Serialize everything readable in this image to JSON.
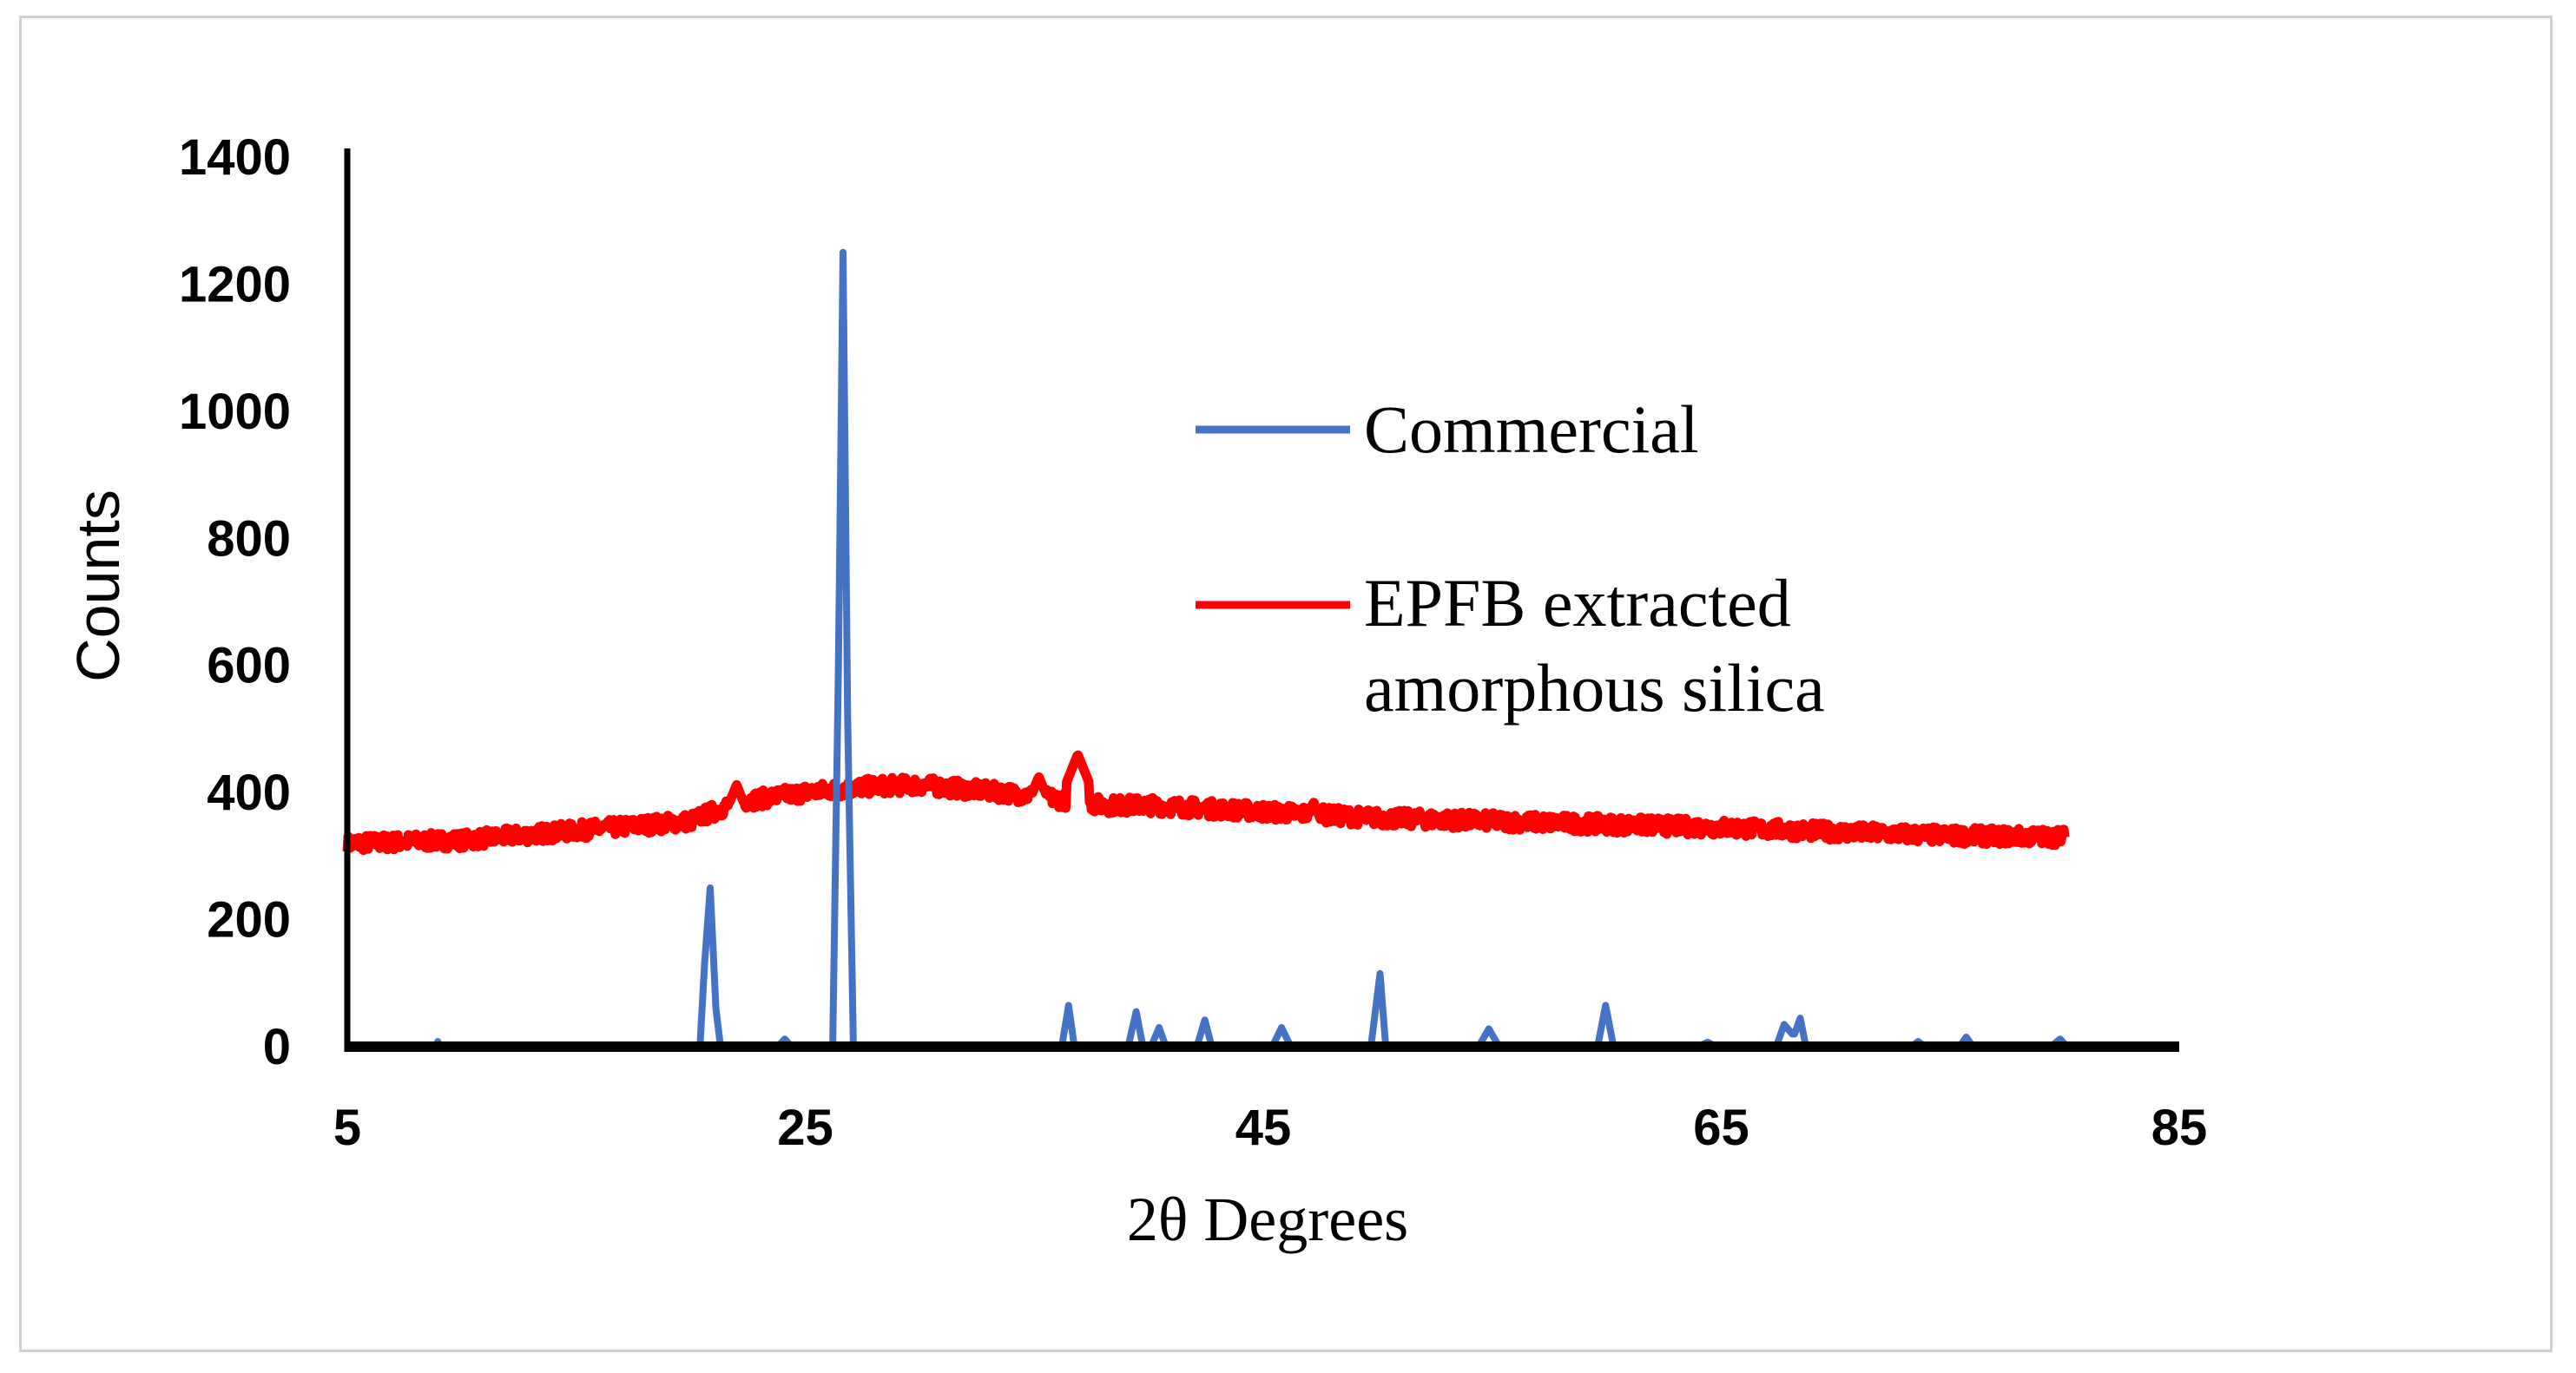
{
  "chart_data": {
    "type": "line",
    "title": "",
    "xlabel": "2θ Degrees",
    "ylabel": "Counts",
    "xlim": [
      5,
      85
    ],
    "ylim": [
      0,
      1400
    ],
    "xticks": [
      5,
      25,
      45,
      65,
      85
    ],
    "yticks": [
      0,
      200,
      400,
      600,
      800,
      1000,
      1200,
      1400
    ],
    "legend_position": "right-center",
    "series": [
      {
        "name": "Commercial",
        "color": "#4472C4",
        "x": [
          5,
          8.9,
          8.95,
          9,
          20.4,
          20.6,
          20.85,
          21.1,
          21.3,
          23.8,
          24.1,
          24.4,
          26.2,
          26.45,
          26.65,
          26.85,
          27.1,
          36.2,
          36.5,
          36.75,
          39.1,
          39.45,
          39.75,
          40.1,
          40.45,
          40.75,
          42.1,
          42.45,
          42.75,
          45.4,
          45.8,
          46.2,
          49.7,
          50.1,
          50.35,
          54.4,
          54.85,
          55.3,
          59.6,
          59.95,
          60.3,
          64.0,
          64.4,
          64.8,
          67.4,
          67.75,
          68.1,
          68.2,
          68.45,
          68.7,
          73.3,
          73.6,
          73.9,
          75.4,
          75.7,
          76.0,
          79.4,
          79.8,
          80.1,
          80
        ],
        "y": [
          0,
          0,
          8,
          0,
          0,
          130,
          250,
          60,
          0,
          0,
          12,
          0,
          0,
          600,
          1250,
          520,
          0,
          0,
          65,
          0,
          0,
          55,
          0,
          0,
          30,
          0,
          0,
          42,
          0,
          0,
          30,
          0,
          0,
          115,
          0,
          0,
          28,
          0,
          0,
          65,
          0,
          0,
          7,
          0,
          0,
          35,
          20,
          20,
          45,
          0,
          0,
          8,
          0,
          0,
          15,
          0,
          0,
          12,
          0,
          0
        ]
      },
      {
        "name": "EPFB extracted amorphous silica",
        "color": "#FF0000",
        "x": [
          5,
          10,
          15,
          20,
          22,
          25,
          28,
          30,
          33,
          35,
          37,
          38,
          40,
          45,
          50,
          55,
          60,
          65,
          70,
          75,
          80
        ],
        "y": [
          320,
          325,
          340,
          355,
          385,
          400,
          410,
          412,
          402,
          395,
          385,
          380,
          380,
          370,
          360,
          355,
          350,
          345,
          338,
          332,
          330
        ],
        "spikes": [
          {
            "x": 22.0,
            "y": 412
          },
          {
            "x": 35.2,
            "y": 425
          },
          {
            "x": 36.9,
            "y": 460
          },
          {
            "x": 47.2,
            "y": 385
          }
        ]
      }
    ]
  }
}
